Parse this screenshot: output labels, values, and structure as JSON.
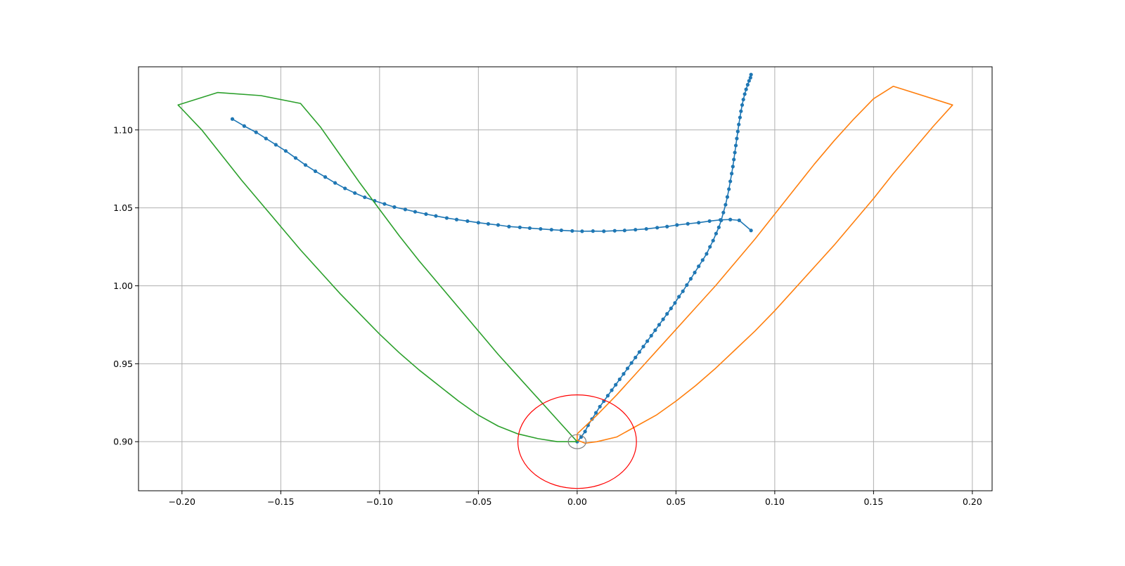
{
  "chart_data": {
    "type": "line",
    "title": "",
    "xlabel": "",
    "ylabel": "",
    "xlim": [
      -0.222,
      0.21
    ],
    "ylim": [
      0.8685,
      1.1405
    ],
    "grid": true,
    "x_ticks": [
      -0.2,
      -0.15,
      -0.1,
      -0.05,
      0.0,
      0.05,
      0.1,
      0.15,
      0.2
    ],
    "x_tick_labels": [
      "−0.20",
      "−0.15",
      "−0.10",
      "−0.05",
      "0.00",
      "0.05",
      "0.10",
      "0.15",
      "0.20"
    ],
    "y_ticks": [
      0.9,
      0.95,
      1.0,
      1.05,
      1.1
    ],
    "y_tick_labels": [
      "0.90",
      "0.95",
      "1.00",
      "1.05",
      "1.10"
    ],
    "colors": {
      "blue": "#1f77b4",
      "orange": "#ff7f0e",
      "green": "#2ca02c",
      "red": "#ff0000",
      "gray": "#808080",
      "grid": "#b0b0b0"
    },
    "series": [
      {
        "color": "#1f77b4",
        "markers": true,
        "points": [
          [
            0.0,
            0.9
          ],
          [
            0.002,
            0.903
          ],
          [
            0.004,
            0.9065
          ],
          [
            0.0055,
            0.9105
          ],
          [
            0.0075,
            0.9145
          ],
          [
            0.0095,
            0.9185
          ],
          [
            0.0115,
            0.9225
          ],
          [
            0.0135,
            0.926
          ],
          [
            0.0155,
            0.9295
          ],
          [
            0.0175,
            0.933
          ],
          [
            0.0195,
            0.9365
          ],
          [
            0.0215,
            0.94
          ],
          [
            0.0235,
            0.9435
          ],
          [
            0.0255,
            0.947
          ],
          [
            0.0275,
            0.9505
          ],
          [
            0.0295,
            0.954
          ],
          [
            0.0315,
            0.9575
          ],
          [
            0.0335,
            0.961
          ],
          [
            0.0355,
            0.9645
          ],
          [
            0.0375,
            0.968
          ],
          [
            0.0395,
            0.9715
          ],
          [
            0.0415,
            0.975
          ],
          [
            0.0435,
            0.9785
          ],
          [
            0.0455,
            0.982
          ],
          [
            0.0475,
            0.9855
          ],
          [
            0.0495,
            0.989
          ],
          [
            0.0515,
            0.993
          ],
          [
            0.0535,
            0.9965
          ],
          [
            0.0555,
            1.0005
          ],
          [
            0.0575,
            1.0045
          ],
          [
            0.0595,
            1.0085
          ],
          [
            0.0615,
            1.0125
          ],
          [
            0.0635,
            1.0165
          ],
          [
            0.0655,
            1.0205
          ],
          [
            0.0672,
            1.025
          ],
          [
            0.0688,
            1.029
          ],
          [
            0.0703,
            1.0335
          ],
          [
            0.0717,
            1.0375
          ],
          [
            0.0729,
            1.042
          ],
          [
            0.074,
            1.047
          ],
          [
            0.0751,
            1.052
          ],
          [
            0.076,
            1.057
          ],
          [
            0.0768,
            1.062
          ],
          [
            0.0775,
            1.067
          ],
          [
            0.0782,
            1.072
          ],
          [
            0.0788,
            1.0765
          ],
          [
            0.0793,
            1.081
          ],
          [
            0.0798,
            1.0855
          ],
          [
            0.0803,
            1.09
          ],
          [
            0.0808,
            1.0945
          ],
          [
            0.0813,
            1.099
          ],
          [
            0.0818,
            1.1035
          ],
          [
            0.0824,
            1.108
          ],
          [
            0.0829,
            1.112
          ],
          [
            0.0835,
            1.116
          ],
          [
            0.0841,
            1.1195
          ],
          [
            0.0848,
            1.123
          ],
          [
            0.0855,
            1.126
          ],
          [
            0.0863,
            1.129
          ],
          [
            0.087,
            1.1315
          ],
          [
            0.0877,
            1.1335
          ],
          [
            0.088,
            1.1355
          ]
        ]
      },
      {
        "color": "#1f77b4",
        "markers": true,
        "points": [
          [
            0.088,
            1.0355
          ],
          [
            0.082,
            1.042
          ],
          [
            0.0775,
            1.0425
          ],
          [
            0.0725,
            1.0423
          ],
          [
            0.067,
            1.0415
          ],
          [
            0.0615,
            1.0405
          ],
          [
            0.056,
            1.0398
          ],
          [
            0.0505,
            1.039
          ],
          [
            0.0455,
            1.038
          ],
          [
            0.0405,
            1.0373
          ],
          [
            0.035,
            1.0365
          ],
          [
            0.0295,
            1.036
          ],
          [
            0.024,
            1.0355
          ],
          [
            0.019,
            1.0353
          ],
          [
            0.0135,
            1.035
          ],
          [
            0.008,
            1.0351
          ],
          [
            0.0025,
            1.035
          ],
          [
            -0.0025,
            1.0352
          ],
          [
            -0.008,
            1.0356
          ],
          [
            -0.013,
            1.036
          ],
          [
            -0.0185,
            1.0365
          ],
          [
            -0.024,
            1.037
          ],
          [
            -0.029,
            1.0375
          ],
          [
            -0.0345,
            1.038
          ],
          [
            -0.04,
            1.039
          ],
          [
            -0.045,
            1.0397
          ],
          [
            -0.05,
            1.0405
          ],
          [
            -0.0555,
            1.0415
          ],
          [
            -0.061,
            1.0425
          ],
          [
            -0.066,
            1.0435
          ],
          [
            -0.0715,
            1.0448
          ],
          [
            -0.0765,
            1.046
          ],
          [
            -0.082,
            1.0475
          ],
          [
            -0.087,
            1.049
          ],
          [
            -0.0925,
            1.0505
          ],
          [
            -0.0975,
            1.0525
          ],
          [
            -0.1025,
            1.0545
          ],
          [
            -0.1075,
            1.0568
          ],
          [
            -0.1125,
            1.0595
          ],
          [
            -0.1175,
            1.0625
          ],
          [
            -0.1225,
            1.066
          ],
          [
            -0.1275,
            1.0698
          ],
          [
            -0.1325,
            1.0735
          ],
          [
            -0.1375,
            1.0775
          ],
          [
            -0.1425,
            1.082
          ],
          [
            -0.1475,
            1.0865
          ],
          [
            -0.1525,
            1.0905
          ],
          [
            -0.1575,
            1.0945
          ],
          [
            -0.1625,
            1.0985
          ],
          [
            -0.1685,
            1.1025
          ],
          [
            -0.1745,
            1.107
          ]
        ]
      },
      {
        "color": "#ff7f0e",
        "markers": false,
        "points": [
          [
            0.0,
            0.905
          ],
          [
            0.01,
            0.917
          ],
          [
            0.02,
            0.93
          ],
          [
            0.03,
            0.944
          ],
          [
            0.04,
            0.958
          ],
          [
            0.05,
            0.972
          ],
          [
            0.06,
            0.986
          ],
          [
            0.07,
            1.0
          ],
          [
            0.08,
            1.015
          ],
          [
            0.09,
            1.03
          ],
          [
            0.1,
            1.046
          ],
          [
            0.11,
            1.062
          ],
          [
            0.12,
            1.078
          ],
          [
            0.13,
            1.093
          ],
          [
            0.14,
            1.107
          ],
          [
            0.15,
            1.12
          ],
          [
            0.16,
            1.128
          ],
          [
            0.19,
            1.116
          ],
          [
            0.18,
            1.102
          ],
          [
            0.17,
            1.087
          ],
          [
            0.16,
            1.072
          ],
          [
            0.15,
            1.056
          ],
          [
            0.14,
            1.041
          ],
          [
            0.13,
            1.026
          ],
          [
            0.12,
            1.012
          ],
          [
            0.11,
            0.998
          ],
          [
            0.1,
            0.984
          ],
          [
            0.09,
            0.971
          ],
          [
            0.08,
            0.959
          ],
          [
            0.07,
            0.947
          ],
          [
            0.06,
            0.936
          ],
          [
            0.05,
            0.926
          ],
          [
            0.04,
            0.917
          ],
          [
            0.03,
            0.91
          ],
          [
            0.02,
            0.903
          ],
          [
            0.01,
            0.9
          ],
          [
            0.004,
            0.899
          ],
          [
            0.002,
            0.9
          ],
          [
            0.0,
            0.901
          ],
          [
            0.0,
            0.905
          ]
        ]
      },
      {
        "color": "#2ca02c",
        "markers": false,
        "points": [
          [
            0.0,
            0.9
          ],
          [
            -0.01,
            0.914
          ],
          [
            -0.02,
            0.928
          ],
          [
            -0.03,
            0.942
          ],
          [
            -0.04,
            0.956
          ],
          [
            -0.05,
            0.971
          ],
          [
            -0.06,
            0.986
          ],
          [
            -0.07,
            1.001
          ],
          [
            -0.08,
            1.016
          ],
          [
            -0.09,
            1.032
          ],
          [
            -0.1,
            1.049
          ],
          [
            -0.11,
            1.066
          ],
          [
            -0.12,
            1.084
          ],
          [
            -0.13,
            1.102
          ],
          [
            -0.14,
            1.117
          ],
          [
            -0.16,
            1.122
          ],
          [
            -0.182,
            1.124
          ],
          [
            -0.202,
            1.116
          ],
          [
            -0.19,
            1.1
          ],
          [
            -0.18,
            1.084
          ],
          [
            -0.17,
            1.068
          ],
          [
            -0.16,
            1.053
          ],
          [
            -0.15,
            1.038
          ],
          [
            -0.14,
            1.023
          ],
          [
            -0.13,
            1.009
          ],
          [
            -0.12,
            0.995
          ],
          [
            -0.11,
            0.982
          ],
          [
            -0.1,
            0.969
          ],
          [
            -0.09,
            0.957
          ],
          [
            -0.08,
            0.946
          ],
          [
            -0.07,
            0.936
          ],
          [
            -0.06,
            0.926
          ],
          [
            -0.05,
            0.917
          ],
          [
            -0.04,
            0.91
          ],
          [
            -0.03,
            0.905
          ],
          [
            -0.02,
            0.902
          ],
          [
            -0.01,
            0.9
          ],
          [
            -0.004,
            0.9
          ],
          [
            0.0,
            0.9
          ]
        ]
      }
    ],
    "circles": [
      {
        "color": "#ff0000",
        "cx": 0.0,
        "cy": 0.9,
        "r": 0.03
      },
      {
        "color": "#808080",
        "cx": 0.0,
        "cy": 0.9,
        "r": 0.0045
      }
    ]
  }
}
